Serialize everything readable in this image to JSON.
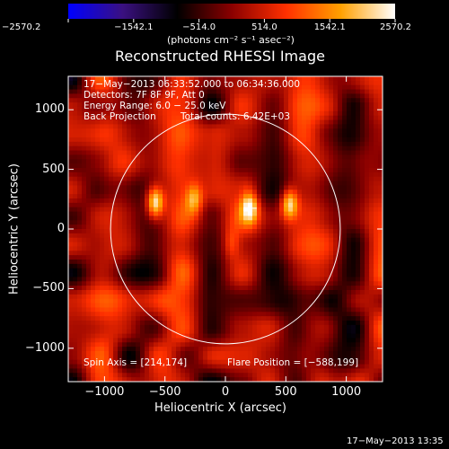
{
  "chart_data": {
    "type": "heatmap",
    "title": "Reconstructed RHESSI Image",
    "xlabel": "Heliocentric X (arcsec)",
    "ylabel": "Heliocentric Y (arcsec)",
    "xlim": [
      -1300,
      1300
    ],
    "ylim": [
      -1280,
      1280
    ],
    "x_ticks": [
      -1000,
      -500,
      0,
      500,
      1000
    ],
    "y_ticks": [
      -1000,
      -500,
      0,
      500,
      1000
    ],
    "x_tick_labels": [
      "−1000",
      "−500",
      "0",
      "500",
      "1000"
    ],
    "y_tick_labels": [
      "1000",
      "500",
      "0",
      "−500",
      "−1000"
    ],
    "colorbar": {
      "min": -2570.2,
      "max": 2570.2,
      "ticks": [
        -2570.2,
        -1542.1,
        -514.0,
        514.0,
        1542.1,
        2570.2
      ],
      "tick_labels": [
        "−2570.2",
        "−1542.1",
        "−514.0",
        "514.0",
        "1542.1",
        "2570.2"
      ],
      "units_label": "(photons cm⁻² s⁻¹ asec⁻²)",
      "colormap": [
        "#0000ff",
        "#3a1080",
        "#000000",
        "#8a0000",
        "#ff3000",
        "#ffa000",
        "#ffffff"
      ]
    },
    "solar_disk": {
      "center": [
        0,
        0
      ],
      "radius": 950
    },
    "flare_position": [
      -588,
      199
    ],
    "spin_axis": [
      214,
      174
    ],
    "sources": [
      {
        "x": -580,
        "y": 220,
        "peak": 2570
      },
      {
        "x": 530,
        "y": 210,
        "peak": 2200
      },
      {
        "x": 200,
        "y": 180,
        "peak": 2000
      },
      {
        "x": -260,
        "y": 250,
        "peak": 1500
      },
      {
        "x": 50,
        "y": -120,
        "peak": 900
      }
    ],
    "annotations": {
      "time_range": "17−May−2013 06:33:52.000 to 06:34:36.000",
      "detectors": "Detectors: 7F 8F 9F, Att 0",
      "energy_range": "Energy Range: 6.0 − 25.0 keV",
      "method": "Back Projection",
      "total_counts": "Total counts: 6.42E+03",
      "spin_axis_label": "Spin Axis = [214,174]",
      "flare_position_label": "Flare Position = [−588,199]"
    }
  },
  "footer": {
    "timestamp": "17−May−2013 13:35"
  },
  "colors": {
    "background": "#000000",
    "foreground": "#ffffff"
  }
}
